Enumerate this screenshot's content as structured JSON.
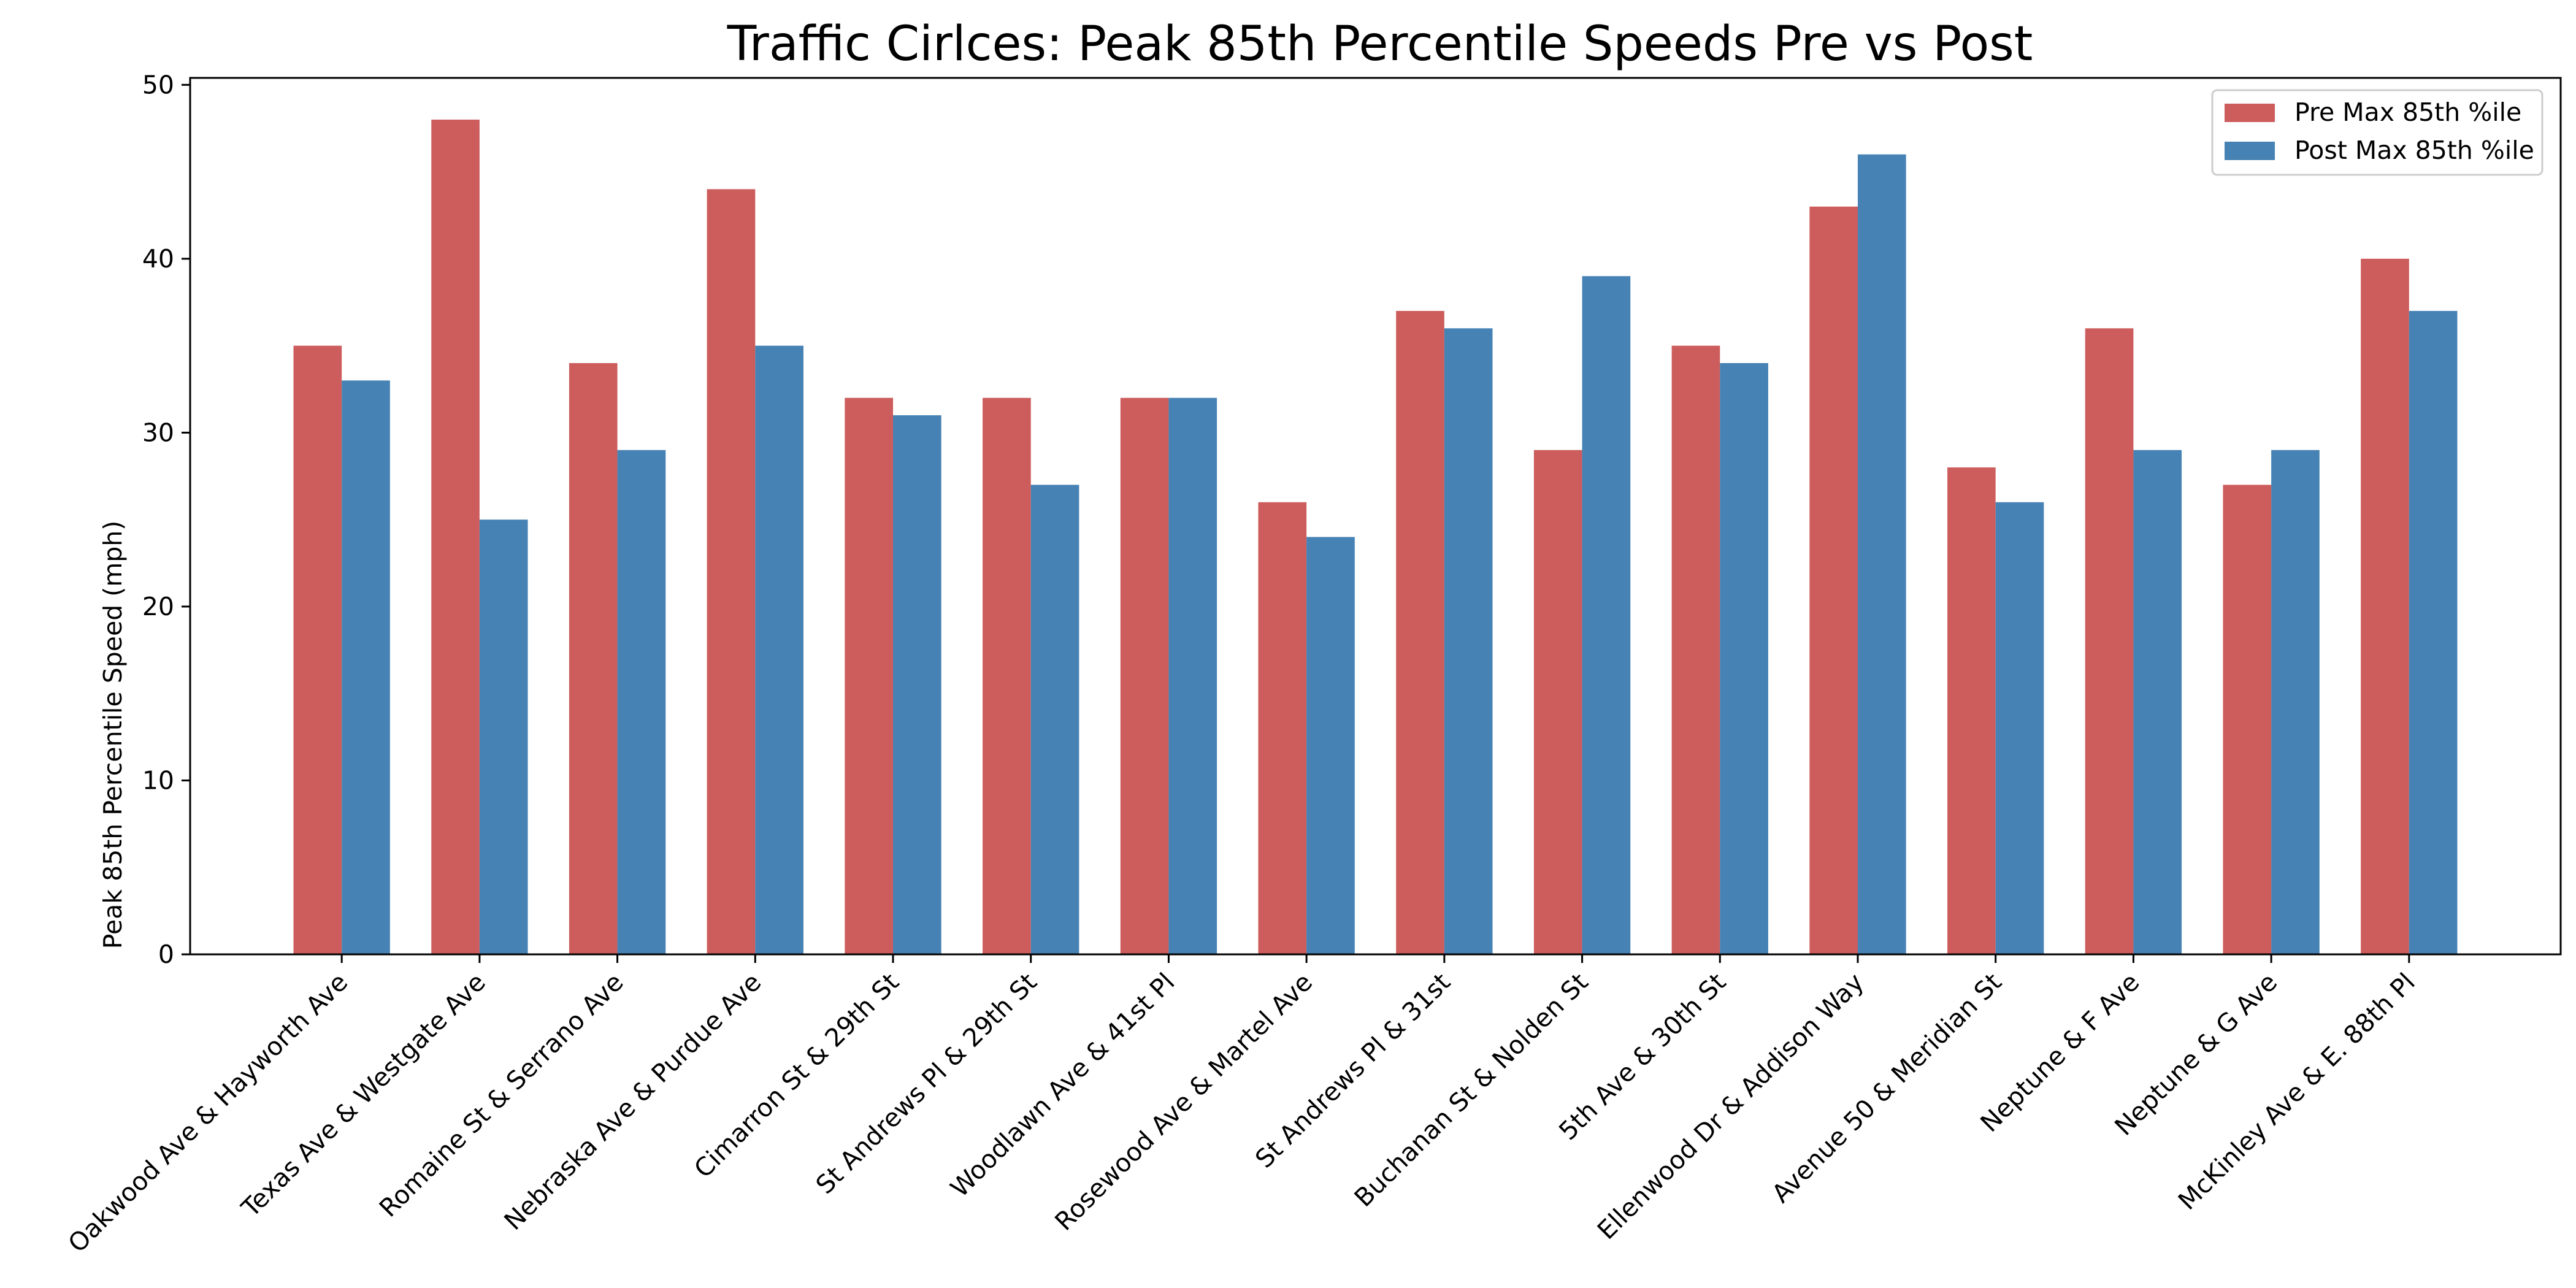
{
  "chart_data": {
    "type": "bar",
    "title": "Traffic Cirlces: Peak 85th Percentile Speeds Pre vs Post",
    "xlabel": "",
    "ylabel": "Peak 85th Percentile Speed (mph)",
    "ylim": [
      0,
      50.4
    ],
    "yticks": [
      0,
      10,
      20,
      30,
      40,
      50
    ],
    "grid": false,
    "legend_position": "top-right",
    "categories": [
      "Oakwood Ave & Hayworth Ave",
      "Texas Ave & Westgate Ave",
      "Romaine St & Serrano Ave",
      "Nebraska Ave & Purdue Ave",
      "Cimarron St & 29th St",
      "St Andrews Pl & 29th St",
      "Woodlawn Ave & 41st Pl",
      "Rosewood Ave & Martel Ave",
      "St Andrews Pl & 31st",
      "Buchanan St & Nolden St",
      "5th Ave & 30th St",
      "Ellenwood Dr & Addison Way",
      "Avenue 50 & Meridian St",
      "Neptune & F Ave",
      "Neptune & G Ave",
      "McKinley Ave & E. 88th Pl"
    ],
    "series": [
      {
        "name": "Pre Max 85th %ile",
        "color": "#cd5c5c",
        "values": [
          35,
          48,
          34,
          44,
          32,
          32,
          32,
          26,
          37,
          29,
          35,
          43,
          28,
          36,
          27,
          40
        ]
      },
      {
        "name": "Post Max 85th %ile",
        "color": "#4682b4",
        "values": [
          33,
          25,
          29,
          35,
          31,
          27,
          32,
          24,
          36,
          39,
          34,
          46,
          26,
          29,
          29,
          37
        ]
      }
    ]
  }
}
